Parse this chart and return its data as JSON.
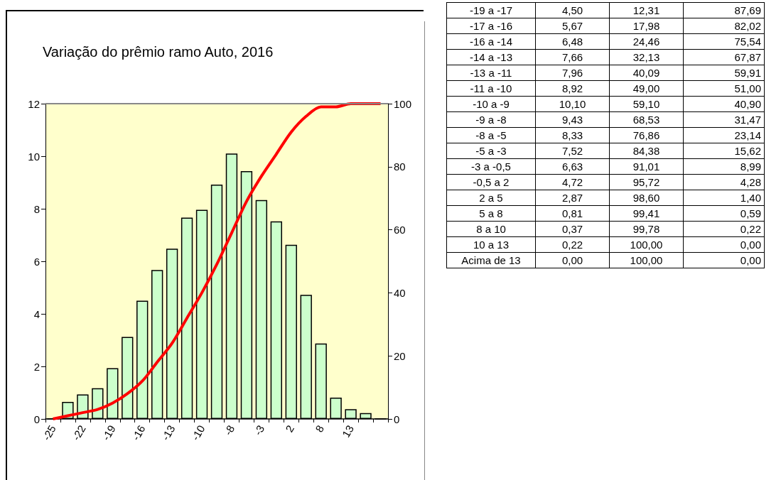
{
  "chart_data": [
    {
      "type": "bar",
      "title": "Variação do prêmio ramo Auto, 2016",
      "categories": [
        "-25",
        null,
        "-22",
        null,
        "-19",
        null,
        "-16",
        null,
        "-13",
        null,
        "-10",
        null,
        "-8",
        null,
        "-3",
        null,
        "2",
        null,
        "8",
        null,
        "13",
        null,
        null
      ],
      "series": [
        {
          "type": "bar",
          "color": "#ccffcc",
          "values": [
            0,
            0.65,
            0.93,
            1.17,
            1.93,
            3.12,
            4.5,
            5.67,
            6.48,
            7.66,
            7.96,
            8.92,
            10.1,
            9.43,
            8.33,
            7.52,
            6.63,
            4.72,
            2.87,
            0.81,
            0.37,
            0.22,
            0
          ]
        },
        {
          "type": "line",
          "axis": "y2",
          "color": "#ff0000",
          "values": [
            0,
            1,
            2,
            3,
            5,
            8,
            12,
            18,
            24,
            32,
            40,
            49,
            59,
            69,
            77,
            84,
            91,
            96,
            99,
            99,
            100,
            100,
            100
          ]
        }
      ],
      "ylim": [
        0,
        12
      ],
      "yticks": [
        0,
        2,
        4,
        6,
        8,
        10,
        12
      ],
      "y2lim": [
        0,
        100
      ],
      "y2ticks": [
        0,
        20,
        40,
        60,
        80,
        100
      ],
      "grid": false,
      "marker": "none",
      "line_style": "solid"
    },
    {
      "type": "other",
      "categories": [
        "-19 a -17",
        "-17 a -16",
        "-16 a -14",
        "-14 a -13",
        "-13 a -11",
        "-11 a -10",
        "-10 a -9",
        "-9 a -8",
        "-8 a -5",
        "-5 a -3",
        "-3 a -0,5",
        "-0,5 a 2",
        "2 a 5",
        "5 a 8",
        "8 a 10",
        "10 a 13",
        "Acima de 13"
      ],
      "series": [
        {
          "values": [
            4.5,
            5.67,
            6.48,
            7.66,
            7.96,
            8.92,
            10.1,
            9.43,
            8.33,
            7.52,
            6.63,
            4.72,
            2.87,
            0.81,
            0.37,
            0.22,
            0.0
          ],
          "value_labels": [
            "4,50",
            "5,67",
            "6,48",
            "7,66",
            "7,96",
            "8,92",
            "10,10",
            "9,43",
            "8,33",
            "7,52",
            "6,63",
            "4,72",
            "2,87",
            "0,81",
            "0,37",
            "0,22",
            "0,00"
          ]
        },
        {
          "values": [
            12.31,
            17.98,
            24.46,
            32.13,
            40.09,
            49.0,
            59.1,
            68.53,
            76.86,
            84.38,
            91.01,
            95.72,
            98.6,
            99.41,
            99.78,
            100.0,
            100.0
          ],
          "value_labels": [
            "12,31",
            "17,98",
            "24,46",
            "32,13",
            "40,09",
            "49,00",
            "59,10",
            "68,53",
            "76,86",
            "84,38",
            "91,01",
            "95,72",
            "98,60",
            "99,41",
            "99,78",
            "100,00",
            "100,00"
          ]
        },
        {
          "values": [
            87.69,
            82.02,
            75.54,
            67.87,
            59.91,
            51.0,
            40.9,
            31.47,
            23.14,
            15.62,
            8.99,
            4.28,
            1.4,
            0.59,
            0.22,
            0.0,
            0.0
          ],
          "value_labels": [
            "87,69",
            "82,02",
            "75,54",
            "67,87",
            "59,91",
            "51,00",
            "40,90",
            "31,47",
            "23,14",
            "15,62",
            "8,99",
            "4,28",
            "1,40",
            "0,59",
            "0,22",
            "0,00",
            "0,00"
          ]
        }
      ]
    }
  ]
}
